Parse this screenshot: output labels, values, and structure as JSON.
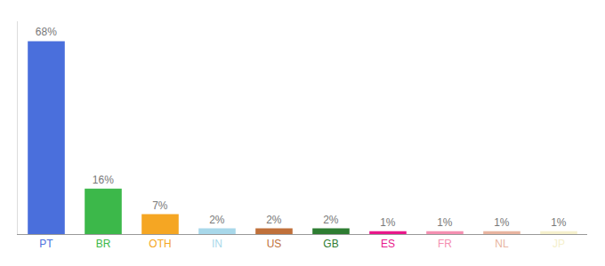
{
  "chart_data": {
    "type": "bar",
    "categories": [
      "PT",
      "BR",
      "OTH",
      "IN",
      "US",
      "GB",
      "ES",
      "FR",
      "NL",
      "JP"
    ],
    "values": [
      68,
      16,
      7,
      2,
      2,
      2,
      1,
      1,
      1,
      1
    ],
    "value_labels": [
      "68%",
      "16%",
      "7%",
      "2%",
      "2%",
      "2%",
      "1%",
      "1%",
      "1%",
      "1%"
    ],
    "colors": [
      "#4a6fdc",
      "#3cb84a",
      "#f5a623",
      "#a8d8ea",
      "#c0703a",
      "#2e7d32",
      "#e8178a",
      "#f48fb1",
      "#e8b4a0",
      "#f5f0cc"
    ],
    "ylim": [
      0,
      75
    ],
    "grid": false,
    "data_labels": true,
    "tick_labels": "x"
  }
}
